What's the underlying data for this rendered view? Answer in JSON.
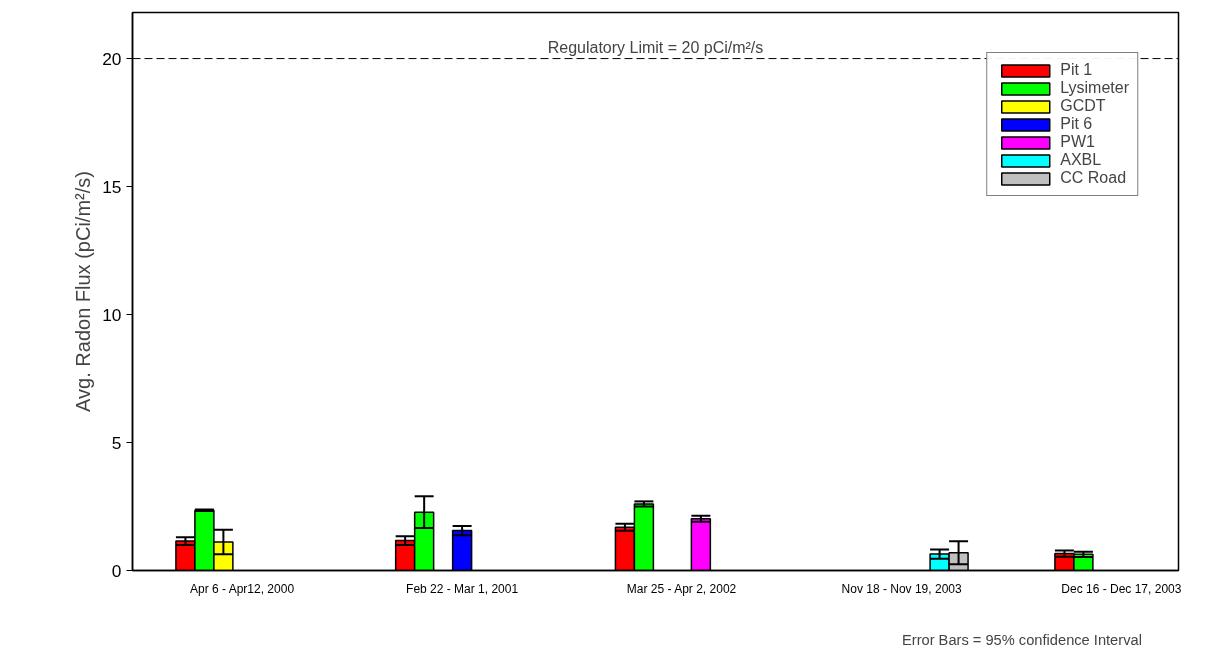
{
  "chart_data": {
    "type": "bar",
    "ylabel": "Avg. Radon Flux (pCi/m²/s)",
    "categories": [
      "Apr 6 - Apr12, 2000",
      "Feb 22 - Mar 1, 2001",
      "Mar 25 - Apr 2, 2002",
      "Nov 18 - Nov 19, 2003",
      "Dec 16 - Dec 17, 2003"
    ],
    "series": [
      {
        "name": "Pit 1",
        "color": "#ff0000",
        "values": [
          1.15,
          1.17,
          1.69,
          null,
          0.66
        ],
        "errors": [
          0.15,
          0.17,
          0.14,
          null,
          0.12
        ]
      },
      {
        "name": "Lysimeter",
        "color": "#00ff00",
        "values": [
          2.35,
          2.28,
          2.6,
          null,
          0.63
        ],
        "errors": [
          0.03,
          0.62,
          0.1,
          null,
          0.1
        ]
      },
      {
        "name": "GCDT",
        "color": "#ffff00",
        "values": [
          1.11,
          null,
          null,
          null,
          null
        ],
        "errors": [
          0.48,
          null,
          null,
          null,
          null
        ]
      },
      {
        "name": "Pit 6",
        "color": "#0000ff",
        "values": [
          null,
          1.56,
          null,
          null,
          null
        ],
        "errors": [
          null,
          0.18,
          null,
          null,
          null
        ]
      },
      {
        "name": "PW1",
        "color": "#ff00ff",
        "values": [
          null,
          null,
          2.02,
          null,
          null
        ],
        "errors": [
          null,
          null,
          0.12,
          null,
          null
        ]
      },
      {
        "name": "AXBL",
        "color": "#00ffff",
        "values": [
          null,
          null,
          null,
          0.64,
          null
        ],
        "errors": [
          null,
          null,
          null,
          0.18,
          null
        ]
      },
      {
        "name": "CC Road",
        "color": "#c0c0c0",
        "values": [
          null,
          null,
          null,
          0.69,
          null
        ],
        "errors": [
          null,
          null,
          null,
          0.45,
          null
        ]
      }
    ],
    "ylim": [
      0,
      21.8
    ],
    "yticks": [
      0,
      5,
      10,
      15,
      20
    ],
    "grid": false,
    "legend": "top right",
    "ref_lines": [
      {
        "axis": "y",
        "value": 20,
        "label": "Regulatory Limit = 20 pCi/m²/s",
        "color": "#000000",
        "line_style": "dashed"
      }
    ],
    "annotations": [
      "Error Bars = 95% confidence Interval"
    ]
  }
}
